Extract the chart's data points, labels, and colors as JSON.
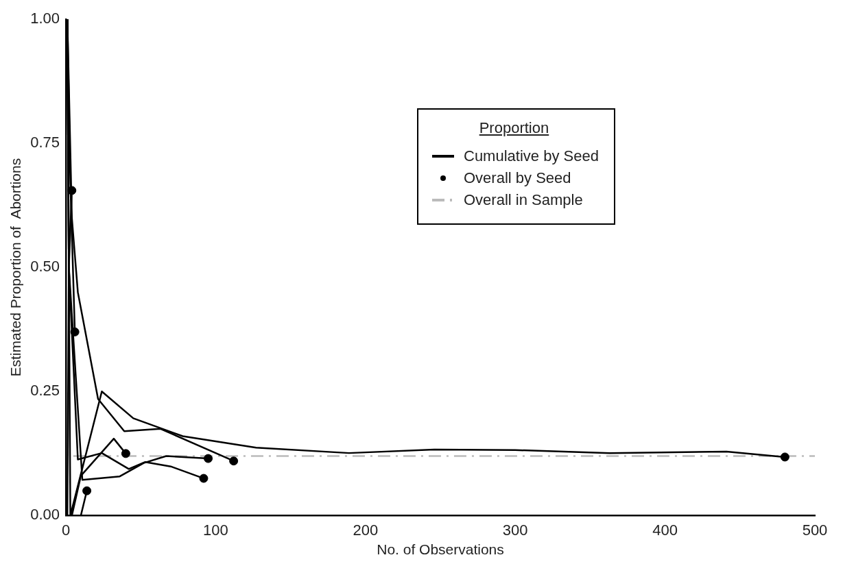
{
  "chart_data": {
    "type": "line",
    "xlabel": "No. of Observations",
    "ylabel": "Estimated Proportion of  Abortions",
    "legend_title": "Proportion",
    "legend": "top right",
    "grid": false,
    "marker": "none",
    "xlim": [
      0,
      500
    ],
    "xticks": [
      0,
      100,
      200,
      300,
      400,
      500
    ],
    "ylim": [
      0,
      1
    ],
    "yticks": [
      {
        "value": 0,
        "label": "0.00"
      },
      {
        "value": 0.25,
        "label": "0.25"
      },
      {
        "value": 0.5,
        "label": "0.50"
      },
      {
        "value": 0.75,
        "label": "0.75"
      },
      {
        "value": 1,
        "label": "1.00"
      }
    ],
    "series": [
      {
        "name": "Cumulative by Seed",
        "color": "#000000",
        "line_style": "solid",
        "x": [
          1,
          2,
          3,
          24,
          45,
          78,
          127,
          189,
          246,
          300,
          363,
          441,
          480
        ],
        "values": [
          1,
          0.5,
          0,
          0.25,
          0.196,
          0.16,
          0.137,
          0.126,
          0.133,
          0.132,
          0.126,
          0.129,
          0.118
        ]
      },
      {
        "type": "line",
        "color": "#000000",
        "line_style": "solid",
        "x": [
          1,
          4,
          8,
          21.5,
          39,
          63,
          112
        ],
        "values": [
          1,
          0.6,
          0.45,
          0.235,
          0.17,
          0.175,
          0.11
        ]
      },
      {
        "type": "line",
        "color": "#000000",
        "line_style": "solid",
        "x": [
          1,
          3,
          6
        ],
        "values": [
          1,
          0.67,
          0.37
        ]
      },
      {
        "type": "line",
        "color": "#000000",
        "line_style": "solid",
        "x": [
          1,
          2,
          4
        ],
        "values": [
          1,
          0.5,
          0.655
        ]
      },
      {
        "type": "line",
        "color": "#000000",
        "line_style": "solid",
        "x": [
          1,
          2,
          8,
          24,
          42,
          53,
          70,
          92
        ],
        "values": [
          1,
          0.5,
          0.113,
          0.126,
          0.094,
          0.108,
          0.099,
          0.075
        ]
      },
      {
        "type": "line",
        "color": "#000000",
        "line_style": "solid",
        "x": [
          1,
          2,
          11,
          36,
          52,
          67,
          95
        ],
        "values": [
          0,
          0.5,
          0.072,
          0.079,
          0.106,
          0.12,
          0.115
        ]
      },
      {
        "type": "line",
        "color": "#000000",
        "line_style": "solid",
        "x": [
          1,
          4,
          10,
          32,
          40
        ],
        "values": [
          0,
          0,
          0.08,
          0.155,
          0.125
        ]
      },
      {
        "type": "line",
        "color": "#000000",
        "line_style": "solid",
        "x": [
          1,
          10,
          14
        ],
        "values": [
          0,
          0,
          0.05
        ]
      },
      {
        "name": "Overall by Seed",
        "type": "scatter",
        "color": "#000000",
        "marker": "circle",
        "x": [
          480,
          112,
          6,
          4,
          92,
          95,
          40,
          14
        ],
        "values": [
          0.118,
          0.11,
          0.37,
          0.655,
          0.075,
          0.115,
          0.125,
          0.05
        ]
      },
      {
        "name": "Overall in Sample",
        "color": "#bbbbbb",
        "line_style": "dashed",
        "x": [
          5,
          500
        ],
        "values": [
          0.12,
          0.12
        ]
      }
    ]
  }
}
